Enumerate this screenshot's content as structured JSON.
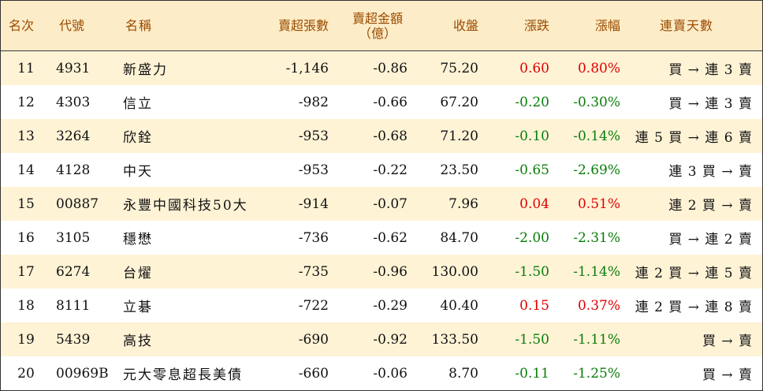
{
  "header": {
    "rank": "名次",
    "code": "代號",
    "name": "名稱",
    "net_sell_shares": "賣超張數",
    "net_sell_amount_line1": "賣超金額",
    "net_sell_amount_line2": "（億）",
    "close": "收盤",
    "change": "漲跌",
    "change_pct": "漲幅",
    "consecutive_days": "連賣天數"
  },
  "colors": {
    "up": "#e00000",
    "down": "#0a7d0a",
    "header_bg": "#fdecc8",
    "stripe_bg": "#fff3d6"
  },
  "rows": [
    {
      "rank": "11",
      "code": "4931",
      "name": "新盛力",
      "shares": "-1,146",
      "amount": "-0.86",
      "close": "75.20",
      "change": "0.60",
      "pct": "0.80%",
      "dir": "up",
      "days": "買 → 連 3 賣"
    },
    {
      "rank": "12",
      "code": "4303",
      "name": "信立",
      "shares": "-982",
      "amount": "-0.66",
      "close": "67.20",
      "change": "-0.20",
      "pct": "-0.30%",
      "dir": "down",
      "days": "買 → 連 3 賣"
    },
    {
      "rank": "13",
      "code": "3264",
      "name": "欣銓",
      "shares": "-953",
      "amount": "-0.68",
      "close": "71.20",
      "change": "-0.10",
      "pct": "-0.14%",
      "dir": "down",
      "days": "連 5 買 → 連 6 賣"
    },
    {
      "rank": "14",
      "code": "4128",
      "name": "中天",
      "shares": "-953",
      "amount": "-0.22",
      "close": "23.50",
      "change": "-0.65",
      "pct": "-2.69%",
      "dir": "down",
      "days": "連 3 買 → 賣"
    },
    {
      "rank": "15",
      "code": "00887",
      "name": "永豐中國科技50大",
      "shares": "-914",
      "amount": "-0.07",
      "close": "7.96",
      "change": "0.04",
      "pct": "0.51%",
      "dir": "up",
      "days": "連 2 買 → 賣"
    },
    {
      "rank": "16",
      "code": "3105",
      "name": "穩懋",
      "shares": "-736",
      "amount": "-0.62",
      "close": "84.70",
      "change": "-2.00",
      "pct": "-2.31%",
      "dir": "down",
      "days": "買 → 連 2 賣"
    },
    {
      "rank": "17",
      "code": "6274",
      "name": "台燿",
      "shares": "-735",
      "amount": "-0.96",
      "close": "130.00",
      "change": "-1.50",
      "pct": "-1.14%",
      "dir": "down",
      "days": "連 2 買 → 連 5 賣"
    },
    {
      "rank": "18",
      "code": "8111",
      "name": "立碁",
      "shares": "-722",
      "amount": "-0.29",
      "close": "40.40",
      "change": "0.15",
      "pct": "0.37%",
      "dir": "up",
      "days": "連 2 買 → 連 8 賣"
    },
    {
      "rank": "19",
      "code": "5439",
      "name": "高技",
      "shares": "-690",
      "amount": "-0.92",
      "close": "133.50",
      "change": "-1.50",
      "pct": "-1.11%",
      "dir": "down",
      "days": "買 → 賣"
    },
    {
      "rank": "20",
      "code": "00969B",
      "name": "元大零息超長美債",
      "shares": "-660",
      "amount": "-0.06",
      "close": "8.70",
      "change": "-0.11",
      "pct": "-1.25%",
      "dir": "down",
      "days": "買 → 賣"
    }
  ]
}
